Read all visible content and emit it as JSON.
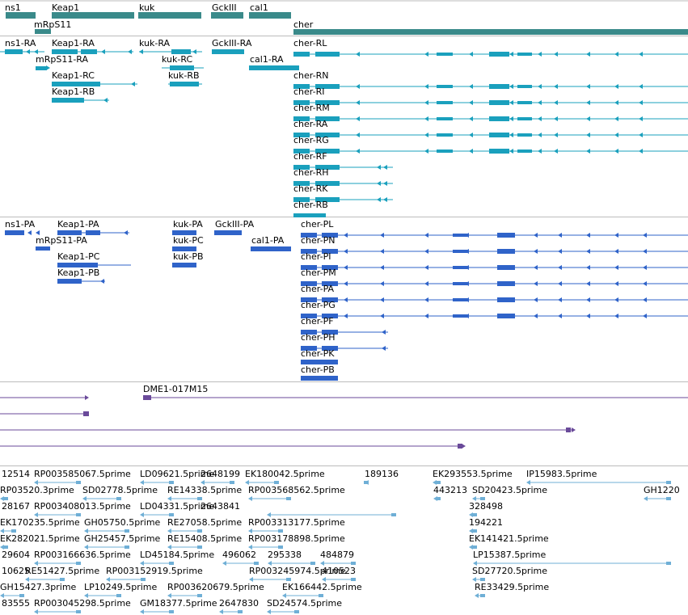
{
  "colors": {
    "gene": "#3a8a8a",
    "transcript": "#1aa0bd",
    "protein": "#2f63c9",
    "clone": "#6a4a9a",
    "est": "#6fafd6",
    "separator": "#bcbcbc"
  },
  "tracks": {
    "genes": {
      "labels": [
        "ns1",
        "Keap1",
        "mRpS11",
        "kuk",
        "GckIII",
        "cal1",
        "cher"
      ]
    },
    "transcripts": {
      "labels": [
        "ns1-RA",
        "Keap1-RA",
        "kuk-RA",
        "GckIII-RA",
        "cher-RL",
        "mRpS11-RA",
        "kuk-RC",
        "cal1-RA",
        "Keap1-RC",
        "kuk-RB",
        "cher-RN",
        "Keap1-RB",
        "cher-RI",
        "cher-RM",
        "cher-RA",
        "cher-RG",
        "cher-RF",
        "cher-RH",
        "cher-RK",
        "cher-RB"
      ]
    },
    "proteins": {
      "labels": [
        "ns1-PA",
        "Keap1-PA",
        "kuk-PA",
        "GckIII-PA",
        "cher-PL",
        "mRpS11-PA",
        "kuk-PC",
        "cal1-PA",
        "cher-PN",
        "Keap1-PC",
        "kuk-PB",
        "cher-PI",
        "Keap1-PB",
        "cher-PM",
        "cher-PA",
        "cher-PG",
        "cher-PF",
        "cher-PH",
        "cher-PK",
        "cher-PB"
      ]
    },
    "clones": {
      "labels": [
        "DME1-017M15"
      ]
    },
    "ests": {
      "labels": [
        "12514",
        "RP003585067.5prime",
        "LD09621.5prime",
        "2648199",
        "EK180042.5prime",
        "189136",
        "EK293553.5prime",
        "IP15983.5prime",
        "RP03520.3prime",
        "SD02778.5prime",
        "RE14338.5prime",
        "RP003568562.5prime",
        "443213",
        "SD20423.5prime",
        "GH1220",
        "28167",
        "RP003408013.5prime",
        "LD04331.5prime",
        "2643841",
        "328498",
        "EK170235.5prime",
        "GH05750.5prime",
        "RE27058.5prime",
        "RP003313177.5prime",
        "194221",
        "EK282021.5prime",
        "GH25457.5prime",
        "RE15408.5prime",
        "RP003178898.5prime",
        "EK141421.5prime",
        "29604",
        "RP003166636.5prime",
        "LD45184.5prime",
        "496062",
        "295338",
        "484879",
        "LP15387.5prime",
        "10625",
        "RE51427.5prime",
        "RP003152919.5prime",
        "RP003245974.5prime",
        "410523",
        "SD27720.5prime",
        "GH15427.3prime",
        "LP10249.5prime",
        "RP003620679.5prime",
        "EK166442.5prime",
        "RE33429.5prime",
        "83555",
        "RP003045298.5prime",
        "GM18377.5prime",
        "2647830",
        "SD24574.5prime"
      ]
    }
  }
}
